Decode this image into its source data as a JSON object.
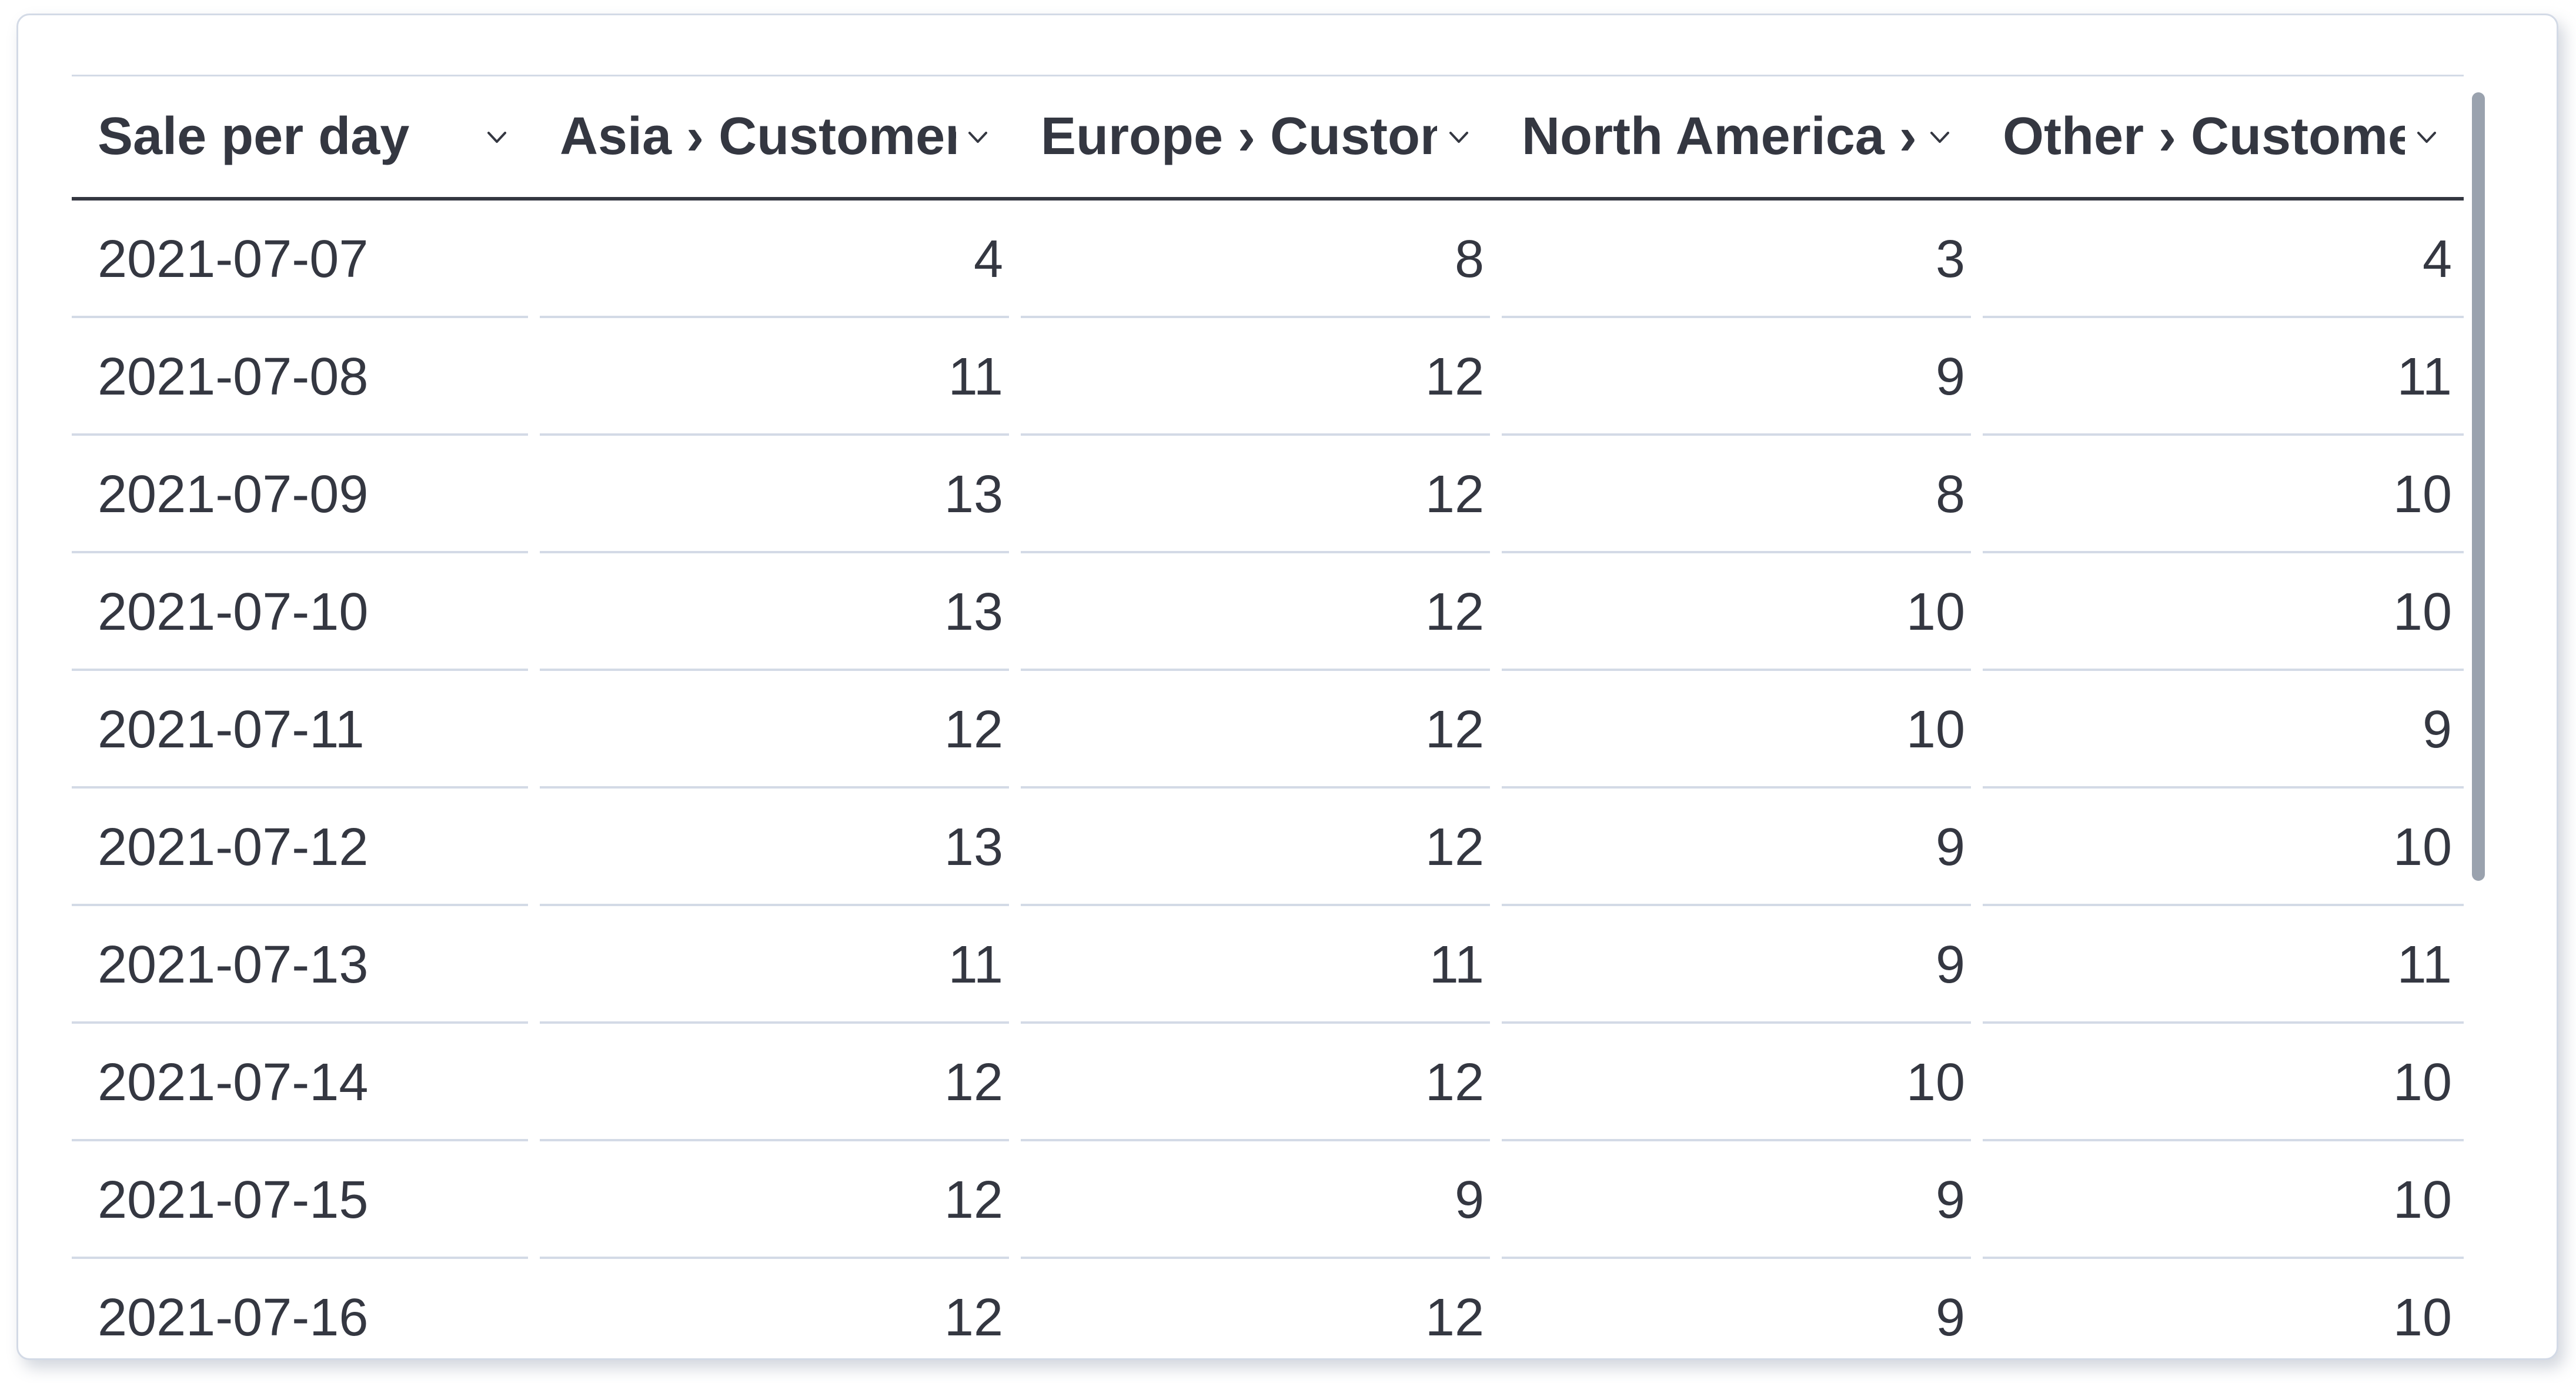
{
  "table": {
    "columns": [
      {
        "key": "sale-per-day",
        "label": "Sale per day",
        "align": "left"
      },
      {
        "key": "asia-customers",
        "label": "Asia › Customers",
        "align": "right"
      },
      {
        "key": "europe-customers",
        "label": "Europe › Customers",
        "align": "right"
      },
      {
        "key": "north-america-customers",
        "label": "North America › Customers",
        "align": "right"
      },
      {
        "key": "other-customers",
        "label": "Other › Customers",
        "align": "right"
      }
    ],
    "rows": [
      {
        "date": "2021-07-07",
        "values": [
          4,
          8,
          3,
          4
        ]
      },
      {
        "date": "2021-07-08",
        "values": [
          11,
          12,
          9,
          11
        ]
      },
      {
        "date": "2021-07-09",
        "values": [
          13,
          12,
          8,
          10
        ]
      },
      {
        "date": "2021-07-10",
        "values": [
          13,
          12,
          10,
          10
        ]
      },
      {
        "date": "2021-07-11",
        "values": [
          12,
          12,
          10,
          9
        ]
      },
      {
        "date": "2021-07-12",
        "values": [
          13,
          12,
          9,
          10
        ]
      },
      {
        "date": "2021-07-13",
        "values": [
          11,
          11,
          9,
          11
        ]
      },
      {
        "date": "2021-07-14",
        "values": [
          12,
          12,
          10,
          10
        ]
      },
      {
        "date": "2021-07-15",
        "values": [
          12,
          9,
          9,
          10
        ]
      },
      {
        "date": "2021-07-16",
        "values": [
          12,
          12,
          9,
          10
        ]
      }
    ]
  },
  "icons": {
    "header_sort": "chevron-down-icon"
  },
  "colors": {
    "text": "#343741",
    "header_underline": "#343741",
    "row_divider": "#d3dae6",
    "card_border": "#d3dae6",
    "card_background": "#ffffff",
    "scrollbar_thumb": "#9aa2ae"
  }
}
